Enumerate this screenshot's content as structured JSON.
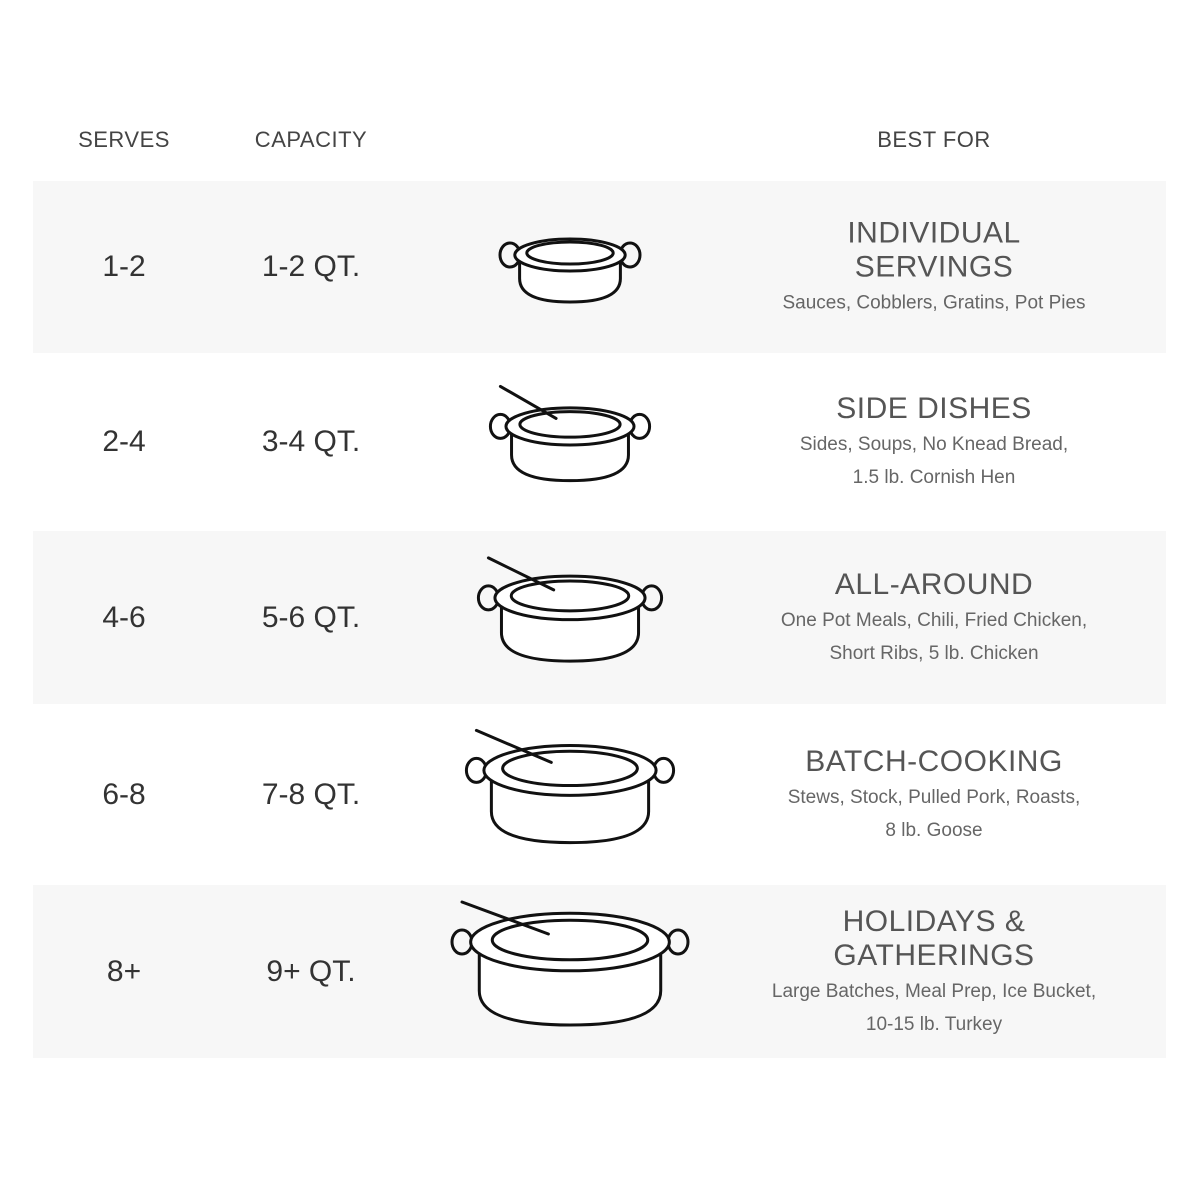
{
  "headers": {
    "serves": "SERVES",
    "capacity": "CAPACITY",
    "best_for": "BEST FOR"
  },
  "rows": [
    {
      "serves": "1-2",
      "capacity": "1-2 QT.",
      "title_lines": [
        "INDIVIDUAL",
        "SERVINGS"
      ],
      "desc_lines": [
        "Sauces, Cobblers, Gratins, Pot Pies"
      ],
      "icon": "pot-pie-icon"
    },
    {
      "serves": "2-4",
      "capacity": "3-4 QT.",
      "title_lines": [
        "SIDE DISHES"
      ],
      "desc_lines": [
        "Sides, Soups, No Knead Bread,",
        "1.5 lb. Cornish Hen"
      ],
      "icon": "pot-with-pasta-and-spoon-icon"
    },
    {
      "serves": "4-6",
      "capacity": "5-6 QT.",
      "title_lines": [
        "ALL-AROUND"
      ],
      "desc_lines": [
        "One Pot Meals, Chili, Fried Chicken,",
        "Short Ribs, 5 lb. Chicken"
      ],
      "icon": "pot-with-chicken-and-tongs-icon"
    },
    {
      "serves": "6-8",
      "capacity": "7-8 QT.",
      "title_lines": [
        "BATCH-COOKING"
      ],
      "desc_lines": [
        "Stews, Stock, Pulled Pork, Roasts,",
        "8 lb. Goose"
      ],
      "icon": "pot-with-roast-icon"
    },
    {
      "serves": "8+",
      "capacity": "9+ QT.",
      "title_lines": [
        "HOLIDAYS &",
        "GATHERINGS"
      ],
      "desc_lines": [
        "Large Batches, Meal Prep, Ice Bucket,",
        "10-15 lb. Turkey"
      ],
      "icon": "pot-with-turkey-icon"
    }
  ],
  "colors": {
    "row_shade": "#f7f7f7",
    "text": "#333333"
  }
}
